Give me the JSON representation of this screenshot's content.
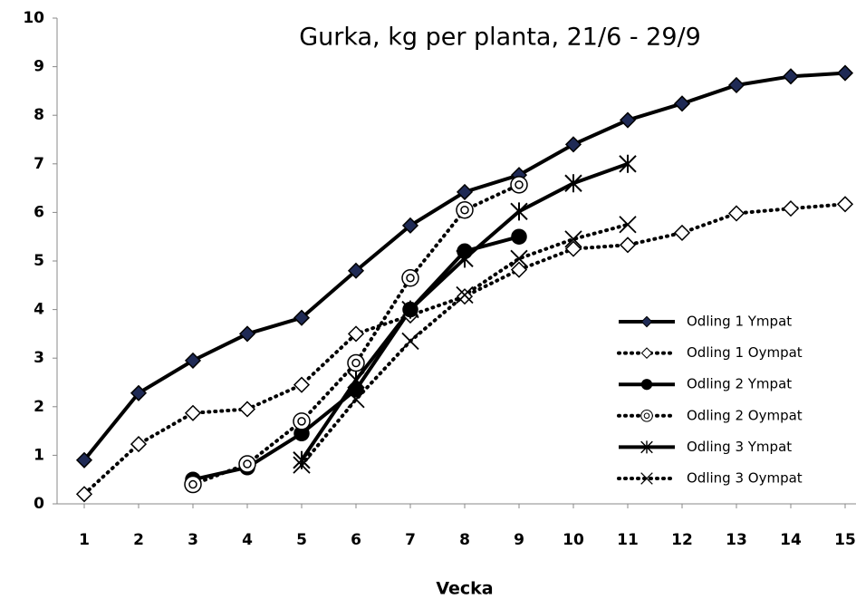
{
  "chart_data": {
    "type": "line",
    "title": "Gurka, kg per planta, 21/6 - 29/9",
    "x_label": "Vecka",
    "x": [
      1,
      2,
      3,
      4,
      5,
      6,
      7,
      8,
      9,
      10,
      11,
      12,
      13,
      14,
      15
    ],
    "xlim": [
      0.5,
      15.2
    ],
    "xticks": [
      1,
      2,
      3,
      4,
      5,
      6,
      7,
      8,
      9,
      10,
      11,
      12,
      13,
      14,
      15
    ],
    "ylim": [
      0,
      10
    ],
    "yticks": [
      0,
      1,
      2,
      3,
      4,
      5,
      6,
      7,
      8,
      9,
      10
    ],
    "grid": false,
    "legend": "right",
    "series": [
      {
        "name": "Odling 1 Ympat",
        "color": "#000000",
        "dash": false,
        "marker": "diamond",
        "marker_fill": "#1f2a55",
        "values": [
          0.9,
          2.28,
          2.95,
          3.5,
          3.83,
          4.8,
          5.73,
          6.42,
          6.77,
          7.4,
          7.9,
          8.24,
          8.62,
          8.8,
          8.87
        ]
      },
      {
        "name": "Odling 1 Oympat",
        "color": "#000000",
        "dash": true,
        "marker": "diamond",
        "marker_fill": "#ffffff",
        "values": [
          0.2,
          1.23,
          1.87,
          1.95,
          2.45,
          3.5,
          3.88,
          4.27,
          4.82,
          5.25,
          5.33,
          5.58,
          5.98,
          6.08,
          6.17
        ]
      },
      {
        "name": "Odling 2 Ympat",
        "color": "#000000",
        "dash": false,
        "marker": "circle",
        "marker_fill": "#000000",
        "values": [
          null,
          null,
          0.5,
          0.75,
          1.45,
          2.35,
          4.0,
          5.2,
          5.5,
          null,
          null,
          null,
          null,
          null,
          null
        ]
      },
      {
        "name": "Odling 2 Oympat",
        "color": "#000000",
        "dash": true,
        "marker": "circle",
        "marker_fill": "#ffffff",
        "values": [
          null,
          null,
          0.4,
          0.82,
          1.7,
          2.9,
          4.65,
          6.05,
          6.57,
          null,
          null,
          null,
          null,
          null,
          null
        ]
      },
      {
        "name": "Odling 3 Ympat",
        "color": "#000000",
        "dash": false,
        "marker": "star",
        "marker_fill": "#000000",
        "values": [
          null,
          null,
          null,
          null,
          0.9,
          2.55,
          4.0,
          5.05,
          6.02,
          6.6,
          7.0,
          null,
          null,
          null,
          null
        ]
      },
      {
        "name": "Odling 3 Oympat",
        "color": "#000000",
        "dash": true,
        "marker": "x",
        "marker_fill": "#000000",
        "values": [
          null,
          null,
          null,
          null,
          0.8,
          2.15,
          3.35,
          4.3,
          5.05,
          5.45,
          5.75,
          null,
          null,
          null,
          null
        ]
      }
    ]
  }
}
